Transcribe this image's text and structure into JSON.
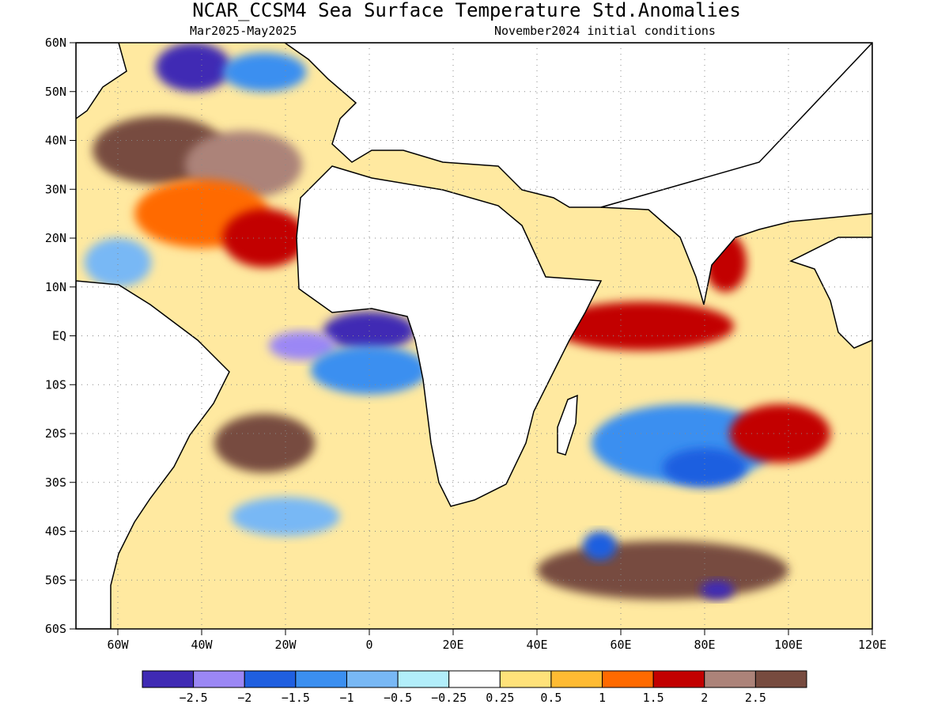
{
  "header": {
    "title": "NCAR_CCSM4 Sea Surface Temperature Std.Anomalies",
    "period": "Mar2025-May2025",
    "init": "November2024 initial conditions"
  },
  "map": {
    "lon_range": [
      -70,
      120
    ],
    "lat_range": [
      -60,
      60
    ],
    "lat_ticks": [
      {
        "value": 60,
        "label": "60N"
      },
      {
        "value": 50,
        "label": "50N"
      },
      {
        "value": 40,
        "label": "40N"
      },
      {
        "value": 30,
        "label": "30N"
      },
      {
        "value": 20,
        "label": "20N"
      },
      {
        "value": 10,
        "label": "10N"
      },
      {
        "value": 0,
        "label": "EQ"
      },
      {
        "value": -10,
        "label": "10S"
      },
      {
        "value": -20,
        "label": "20S"
      },
      {
        "value": -30,
        "label": "30S"
      },
      {
        "value": -40,
        "label": "40S"
      },
      {
        "value": -50,
        "label": "50S"
      },
      {
        "value": -60,
        "label": "60S"
      }
    ],
    "lon_ticks": [
      {
        "value": -60,
        "label": "60W"
      },
      {
        "value": -40,
        "label": "40W"
      },
      {
        "value": -20,
        "label": "20W"
      },
      {
        "value": 0,
        "label": "0"
      },
      {
        "value": 20,
        "label": "20E"
      },
      {
        "value": 40,
        "label": "40E"
      },
      {
        "value": 60,
        "label": "60E"
      },
      {
        "value": 80,
        "label": "80E"
      },
      {
        "value": 100,
        "label": "100E"
      },
      {
        "value": 120,
        "label": "120E"
      }
    ],
    "grid": true,
    "land_color": "#ffffff"
  },
  "colorbar": {
    "colors": [
      "#3f2ab4",
      "#9b87f5",
      "#1f5fe0",
      "#3b8ff0",
      "#78b8f5",
      "#b2eefa",
      "#ffffff",
      "#ffe27a",
      "#ffbb33",
      "#ff6a00",
      "#c20000",
      "#ac8379",
      "#774b3f"
    ],
    "labels": [
      "-2.5",
      "-2",
      "-1.5",
      "-1",
      "-0.5",
      "-0.25",
      "0.25",
      "0.5",
      "1",
      "1.5",
      "2",
      "2.5"
    ]
  },
  "anomaly_regions": [
    {
      "lon": -42,
      "lat": 55,
      "rx": 9,
      "ry": 5,
      "level": 0
    },
    {
      "lon": -25,
      "lat": 54,
      "rx": 10,
      "ry": 4,
      "level": 3
    },
    {
      "lon": -50,
      "lat": 38,
      "rx": 16,
      "ry": 7,
      "level": 12
    },
    {
      "lon": -30,
      "lat": 35,
      "rx": 14,
      "ry": 7,
      "level": 11
    },
    {
      "lon": -40,
      "lat": 25,
      "rx": 16,
      "ry": 7,
      "level": 9
    },
    {
      "lon": -25,
      "lat": 20,
      "rx": 10,
      "ry": 6,
      "level": 10
    },
    {
      "lon": -60,
      "lat": 15,
      "rx": 8,
      "ry": 5,
      "level": 4
    },
    {
      "lon": 0,
      "lat": 1,
      "rx": 11,
      "ry": 4,
      "level": 0
    },
    {
      "lon": -16,
      "lat": -2,
      "rx": 8,
      "ry": 3,
      "level": 1
    },
    {
      "lon": 0,
      "lat": -7,
      "rx": 14,
      "ry": 5,
      "level": 3
    },
    {
      "lon": 65,
      "lat": 2,
      "rx": 22,
      "ry": 5,
      "level": 10
    },
    {
      "lon": 85,
      "lat": 15,
      "rx": 5,
      "ry": 6,
      "level": 10
    },
    {
      "lon": 75,
      "lat": -22,
      "rx": 22,
      "ry": 8,
      "level": 3
    },
    {
      "lon": 80,
      "lat": -27,
      "rx": 10,
      "ry": 4,
      "level": 2
    },
    {
      "lon": 98,
      "lat": -20,
      "rx": 12,
      "ry": 6,
      "level": 10
    },
    {
      "lon": -25,
      "lat": -22,
      "rx": 12,
      "ry": 6,
      "level": 12
    },
    {
      "lon": -20,
      "lat": -37,
      "rx": 13,
      "ry": 4,
      "level": 4
    },
    {
      "lon": 70,
      "lat": -48,
      "rx": 30,
      "ry": 6,
      "level": 12
    },
    {
      "lon": 55,
      "lat": -43,
      "rx": 4,
      "ry": 3,
      "level": 2
    },
    {
      "lon": 83,
      "lat": -52,
      "rx": 4,
      "ry": 2,
      "level": 0
    }
  ]
}
